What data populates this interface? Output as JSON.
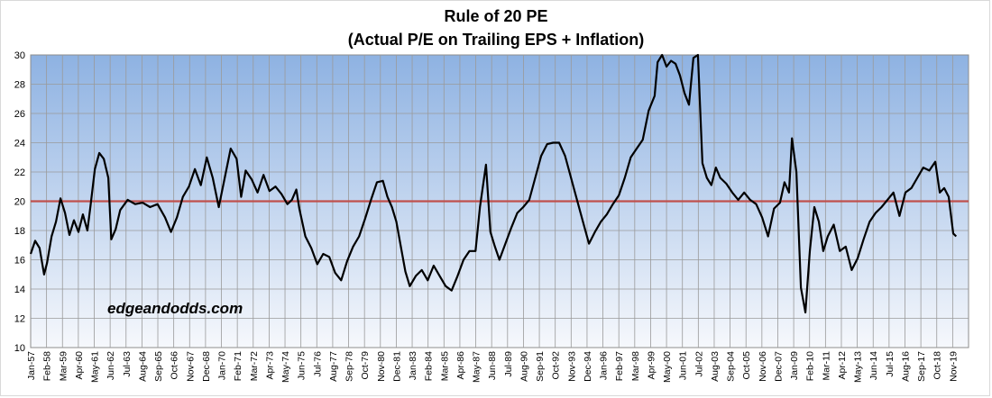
{
  "chart_data": {
    "type": "line",
    "title": "Rule of 20 PE",
    "subtitle": "(Actual P/E on Trailing EPS + Inflation)",
    "xlabel": "",
    "ylabel": "",
    "ylim": [
      10,
      30
    ],
    "y_ticks": [
      10,
      12,
      14,
      16,
      18,
      20,
      22,
      24,
      26,
      28,
      30
    ],
    "x_tick_labels": [
      "Jan-57",
      "Feb-58",
      "Mar-59",
      "Apr-60",
      "May-61",
      "Jun-62",
      "Jul-63",
      "Aug-64",
      "Sep-65",
      "Oct-66",
      "Nov-67",
      "Dec-68",
      "Jan-70",
      "Feb-71",
      "Mar-72",
      "Apr-73",
      "May-74",
      "Jun-75",
      "Jul-76",
      "Aug-77",
      "Sep-78",
      "Oct-79",
      "Nov-80",
      "Dec-81",
      "Jan-83",
      "Feb-84",
      "Mar-85",
      "Apr-86",
      "May-87",
      "Jun-88",
      "Jul-89",
      "Aug-90",
      "Sep-91",
      "Oct-92",
      "Nov-93",
      "Dec-94",
      "Jan-96",
      "Feb-97",
      "Mar-98",
      "Apr-99",
      "May-00",
      "Jun-01",
      "Jul-02",
      "Aug-03",
      "Sep-04",
      "Oct-05",
      "Nov-06",
      "Dec-07",
      "Jan-09",
      "Feb-10",
      "Mar-11",
      "Apr-12",
      "May-13",
      "Jun-14",
      "Jul-15",
      "Aug-16",
      "Sep-17",
      "Oct-18",
      "Nov-19"
    ],
    "grid": true,
    "reference_line": {
      "value": 20,
      "color": "#c0504d"
    },
    "series": [
      {
        "name": "Rule of 20 PE",
        "color": "#000000",
        "x": [
          1957.0,
          1957.3,
          1957.6,
          1957.9,
          1958.1,
          1958.4,
          1958.7,
          1959.0,
          1959.3,
          1959.6,
          1959.9,
          1960.2,
          1960.5,
          1960.8,
          1961.0,
          1961.3,
          1961.6,
          1961.9,
          1962.2,
          1962.4,
          1962.7,
          1963.0,
          1963.5,
          1964.0,
          1964.5,
          1965.0,
          1965.5,
          1966.0,
          1966.4,
          1966.8,
          1967.2,
          1967.6,
          1968.0,
          1968.4,
          1968.8,
          1969.2,
          1969.6,
          1970.0,
          1970.4,
          1970.8,
          1971.1,
          1971.4,
          1971.8,
          1972.2,
          1972.6,
          1973.0,
          1973.4,
          1973.8,
          1974.2,
          1974.5,
          1974.8,
          1975.0,
          1975.4,
          1975.8,
          1976.2,
          1976.6,
          1977.0,
          1977.4,
          1977.8,
          1978.2,
          1978.6,
          1979.0,
          1979.4,
          1979.8,
          1980.2,
          1980.6,
          1980.9,
          1981.2,
          1981.5,
          1981.8,
          1982.1,
          1982.4,
          1982.8,
          1983.2,
          1983.6,
          1984.0,
          1984.4,
          1984.8,
          1985.2,
          1985.6,
          1986.0,
          1986.4,
          1986.8,
          1987.1,
          1987.5,
          1987.8,
          1988.1,
          1988.4,
          1988.8,
          1989.2,
          1989.6,
          1990.0,
          1990.4,
          1990.8,
          1991.2,
          1991.6,
          1992.0,
          1992.4,
          1992.8,
          1993.2,
          1993.6,
          1994.0,
          1994.4,
          1994.8,
          1995.2,
          1995.6,
          1996.0,
          1996.4,
          1996.8,
          1997.2,
          1997.6,
          1998.0,
          1998.4,
          1998.8,
          1999.0,
          1999.3,
          1999.6,
          1999.9,
          2000.2,
          2000.5,
          2000.8,
          2001.1,
          2001.4,
          2001.7,
          2002.0,
          2002.3,
          2002.6,
          2002.9,
          2003.2,
          2003.6,
          2004.0,
          2004.4,
          2004.8,
          2005.2,
          2005.6,
          2006.0,
          2006.4,
          2006.8,
          2007.2,
          2007.5,
          2007.8,
          2008.0,
          2008.3,
          2008.6,
          2008.9,
          2009.2,
          2009.5,
          2009.8,
          2010.1,
          2010.4,
          2010.8,
          2011.2,
          2011.6,
          2012.0,
          2012.4,
          2012.8,
          2013.2,
          2013.6,
          2014.0,
          2014.4,
          2014.8,
          2015.2,
          2015.6,
          2016.0,
          2016.4,
          2016.8,
          2017.2,
          2017.6,
          2017.9,
          2018.2,
          2018.5,
          2018.8,
          2019.0
        ],
        "values": [
          16.4,
          17.3,
          16.8,
          15.0,
          15.8,
          17.6,
          18.6,
          20.2,
          19.2,
          17.7,
          18.7,
          17.9,
          19.1,
          18.0,
          19.6,
          22.2,
          23.3,
          22.9,
          21.6,
          17.4,
          18.1,
          19.4,
          20.1,
          19.8,
          19.9,
          19.6,
          19.8,
          18.9,
          17.9,
          18.9,
          20.3,
          21.0,
          22.2,
          21.1,
          23.0,
          21.6,
          19.6,
          21.6,
          23.6,
          22.9,
          20.3,
          22.1,
          21.5,
          20.6,
          21.8,
          20.7,
          21.0,
          20.5,
          19.8,
          20.1,
          20.8,
          19.5,
          17.6,
          16.8,
          15.7,
          16.4,
          16.2,
          15.1,
          14.6,
          15.9,
          16.9,
          17.6,
          18.8,
          20.1,
          21.3,
          21.4,
          20.3,
          19.6,
          18.6,
          16.9,
          15.2,
          14.2,
          14.9,
          15.3,
          14.6,
          15.6,
          14.9,
          14.2,
          13.9,
          14.9,
          16.0,
          16.6,
          16.6,
          19.6,
          22.5,
          17.9,
          16.9,
          16.0,
          17.1,
          18.2,
          19.2,
          19.6,
          20.1,
          21.6,
          23.1,
          23.9,
          24.0,
          24.0,
          23.1,
          21.6,
          20.1,
          18.6,
          17.1,
          17.9,
          18.6,
          19.1,
          19.8,
          20.4,
          21.6,
          23.0,
          23.6,
          24.2,
          26.2,
          27.2,
          29.5,
          30.0,
          29.2,
          29.6,
          29.4,
          28.6,
          27.4,
          26.6,
          29.8,
          30.0,
          22.6,
          21.6,
          21.1,
          22.3,
          21.6,
          21.2,
          20.6,
          20.1,
          20.6,
          20.1,
          19.8,
          18.9,
          17.6,
          19.5,
          19.9,
          21.3,
          20.6,
          24.3,
          22.0,
          14.1,
          12.4,
          16.6,
          19.6,
          18.6,
          16.6,
          17.6,
          18.4,
          16.6,
          16.9,
          15.3,
          16.1,
          17.4,
          18.6,
          19.2,
          19.6,
          20.1,
          20.6,
          19.0,
          20.6,
          20.9,
          21.6,
          22.3,
          22.1,
          22.7,
          20.6,
          20.9,
          20.3,
          17.8,
          17.6
        ]
      }
    ],
    "watermark": "edgeandodds.com"
  }
}
